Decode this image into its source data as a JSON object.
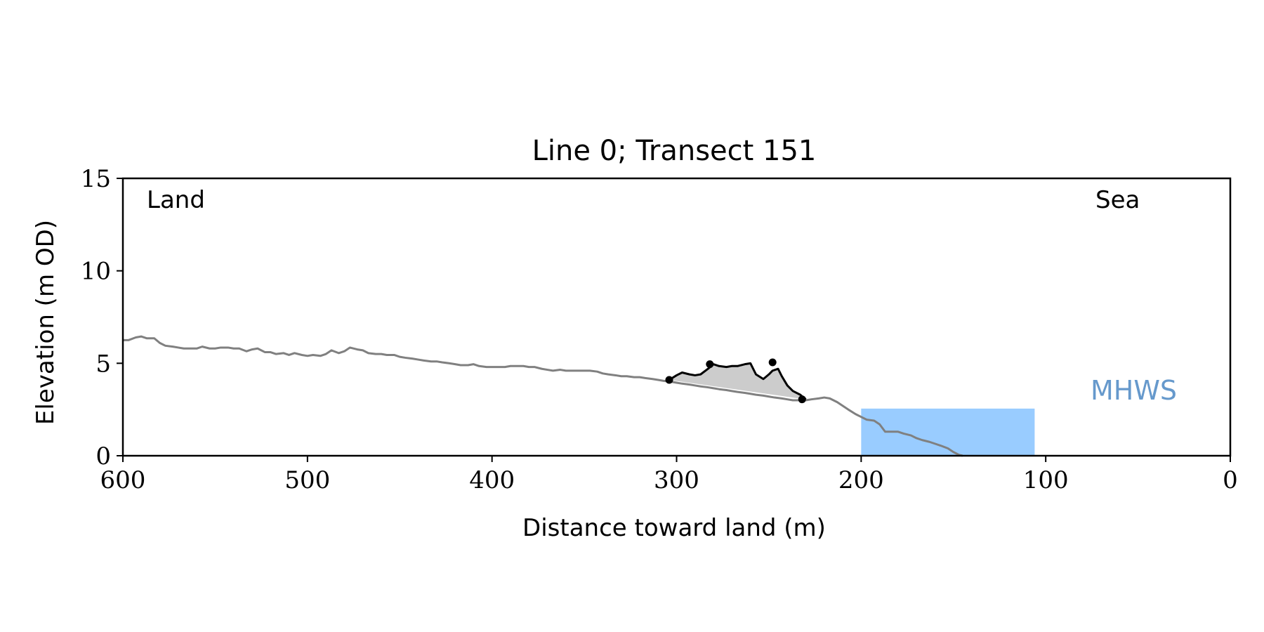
{
  "chart_data": {
    "type": "line",
    "title": "Line 0; Transect 151",
    "xlabel": "Distance toward land (m)",
    "ylabel": "Elevation (m OD)",
    "xlim": [
      600,
      0
    ],
    "ylim": [
      0,
      15
    ],
    "xticks": [
      600,
      500,
      400,
      300,
      200,
      100,
      0
    ],
    "yticks": [
      0,
      5,
      10,
      15
    ],
    "grid": false,
    "annotations": {
      "land_label": "Land",
      "sea_label": "Sea",
      "mhws_label": "MHWS"
    },
    "colors": {
      "profile": "#808080",
      "dune": "#000000",
      "dune_fill": "#cccccc",
      "water": "#99ccff",
      "mhws_text": "#6699cc",
      "axes": "#000000"
    },
    "series": [
      {
        "x": [
          600,
          597,
          593,
          590,
          587,
          583,
          580,
          577,
          573,
          570,
          567,
          563,
          560,
          557,
          553,
          550,
          547,
          543,
          540,
          537,
          533,
          530,
          527,
          523,
          520,
          517,
          513,
          510,
          507,
          503,
          500,
          497,
          493,
          490,
          487,
          483,
          480,
          477,
          473,
          470,
          467,
          463,
          460,
          457,
          453,
          450,
          447,
          443,
          440,
          437,
          433,
          430,
          427,
          423,
          420,
          417,
          413,
          410,
          407,
          403,
          400,
          397,
          393,
          390,
          387,
          383,
          380,
          377,
          373,
          370,
          367,
          363,
          360,
          357,
          353,
          350,
          347,
          343,
          340,
          337,
          333,
          330,
          327,
          323,
          320,
          317,
          313,
          310,
          307,
          303,
          300,
          297,
          293,
          290,
          287,
          283,
          280,
          277,
          273,
          270,
          267,
          263,
          260,
          257,
          253,
          250,
          247,
          243,
          240,
          237,
          233,
          230,
          227,
          223,
          220,
          217,
          213,
          210,
          207,
          203,
          200,
          197,
          193,
          190,
          187,
          183,
          180,
          177,
          173,
          170,
          167,
          163,
          160,
          157,
          153,
          150,
          147,
          145
        ],
        "y": [
          6.25,
          6.25,
          6.4,
          6.45,
          6.35,
          6.35,
          6.1,
          5.95,
          5.9,
          5.85,
          5.8,
          5.8,
          5.8,
          5.9,
          5.8,
          5.8,
          5.85,
          5.85,
          5.8,
          5.8,
          5.65,
          5.75,
          5.8,
          5.6,
          5.6,
          5.5,
          5.55,
          5.45,
          5.55,
          5.45,
          5.4,
          5.45,
          5.4,
          5.5,
          5.7,
          5.55,
          5.65,
          5.85,
          5.75,
          5.7,
          5.55,
          5.5,
          5.5,
          5.45,
          5.45,
          5.35,
          5.3,
          5.25,
          5.2,
          5.15,
          5.1,
          5.1,
          5.05,
          5.0,
          4.95,
          4.9,
          4.9,
          4.95,
          4.85,
          4.8,
          4.8,
          4.8,
          4.8,
          4.85,
          4.85,
          4.85,
          4.8,
          4.8,
          4.7,
          4.65,
          4.6,
          4.65,
          4.6,
          4.6,
          4.6,
          4.6,
          4.6,
          4.55,
          4.45,
          4.4,
          4.35,
          4.3,
          4.3,
          4.25,
          4.25,
          4.2,
          4.15,
          4.1,
          4.05,
          4.0,
          3.95,
          3.9,
          3.85,
          3.8,
          3.75,
          3.7,
          3.65,
          3.6,
          3.55,
          3.5,
          3.45,
          3.4,
          3.35,
          3.3,
          3.25,
          3.2,
          3.15,
          3.1,
          3.05,
          3.0,
          3.0,
          3.0,
          3.05,
          3.1,
          3.15,
          3.1,
          2.9,
          2.7,
          2.5,
          2.25,
          2.1,
          1.95,
          1.9,
          1.7,
          1.3,
          1.3,
          1.3,
          1.2,
          1.1,
          0.95,
          0.85,
          0.75,
          0.65,
          0.55,
          0.4,
          0.2,
          0.05,
          0.0
        ]
      },
      {
        "x": [
          304,
          300,
          297,
          293,
          290,
          287,
          283,
          280,
          277,
          273,
          270,
          267,
          263,
          260,
          257,
          253,
          250,
          248,
          245,
          243,
          240,
          237,
          233,
          230
        ],
        "y": [
          4.1,
          4.35,
          4.5,
          4.4,
          4.35,
          4.4,
          4.7,
          4.95,
          4.85,
          4.8,
          4.85,
          4.85,
          4.95,
          5.0,
          4.4,
          4.15,
          4.4,
          4.6,
          4.7,
          4.3,
          3.8,
          3.5,
          3.3,
          3.05
        ]
      }
    ],
    "dune_markers": [
      {
        "x": 304,
        "y": 4.1
      },
      {
        "x": 282,
        "y": 4.95
      },
      {
        "x": 248,
        "y": 5.05
      },
      {
        "x": 232,
        "y": 3.05
      }
    ],
    "water": {
      "x_from": 200,
      "x_to": 106,
      "level": 2.55
    }
  }
}
